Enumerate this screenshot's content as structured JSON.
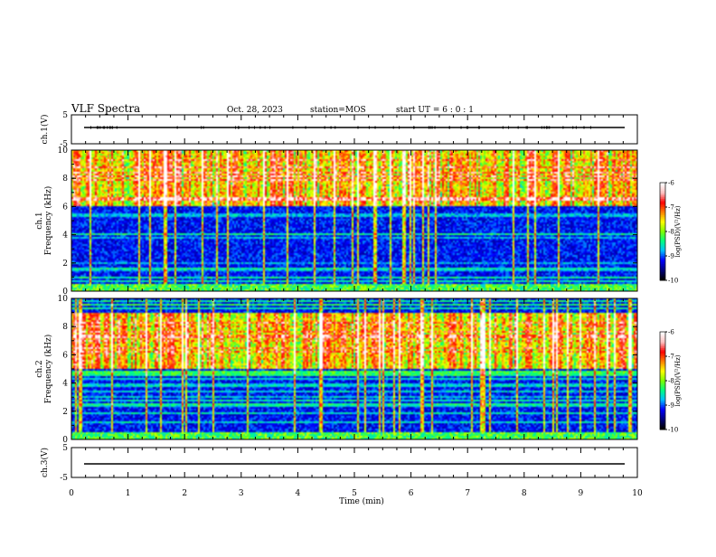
{
  "header": {
    "title": "VLF Spectra",
    "date": "Oct. 28, 2023",
    "station": "station=MOS",
    "start_ut": "start UT =  6 : 0 : 1"
  },
  "chart_data": [
    {
      "type": "line",
      "ylabel": "ch.1(V)",
      "ylim": [
        -5,
        5
      ],
      "yticks": [
        "5",
        "-5"
      ],
      "x": [
        0,
        10
      ],
      "y": [
        0,
        0
      ],
      "line_color": "#000000"
    },
    {
      "type": "heatmap",
      "ylabel": "ch.1\nFrequency (kHz)",
      "ylabel_top": "ch.1",
      "ylabel_bottom": "Frequency (kHz)",
      "ylim": [
        0,
        10
      ],
      "yticks": [
        "10",
        "8",
        "6",
        "4",
        "2",
        "0"
      ],
      "colorbar": {
        "label": "log(PSD)(V²/Hz)",
        "range": [
          -10,
          -6
        ],
        "ticks": [
          "-6",
          "-7",
          "-8",
          "-9",
          "-10"
        ]
      },
      "dominant_band_khz": [
        6,
        10
      ],
      "background_level": -9.5
    },
    {
      "type": "heatmap",
      "ylabel": "ch.2\nFrequency (kHz)",
      "ylabel_top": "ch.2",
      "ylabel_bottom": "Frequency (kHz)",
      "ylim": [
        0,
        10
      ],
      "yticks": [
        "10",
        "8",
        "6",
        "4",
        "2",
        "0"
      ],
      "colorbar": {
        "label": "log(PSD)(V²/Hz)",
        "range": [
          -10,
          -6
        ],
        "ticks": [
          "-6",
          "-7",
          "-8",
          "-9",
          "-10"
        ]
      },
      "dominant_band_khz": [
        5,
        9
      ],
      "background_level": -9.5
    },
    {
      "type": "line",
      "ylabel": "ch.3(V)",
      "ylim": [
        -5,
        5
      ],
      "yticks": [
        "5",
        "-5"
      ],
      "x": [
        0,
        10
      ],
      "y": [
        0,
        0
      ],
      "line_color": "#000000"
    }
  ],
  "xaxis": {
    "label": "Time (min)",
    "range": [
      0,
      10
    ],
    "ticks": [
      "0",
      "1",
      "2",
      "3",
      "4",
      "5",
      "6",
      "7",
      "8",
      "9",
      "10"
    ]
  },
  "colormap": [
    "#000000",
    "#000080",
    "#0000ff",
    "#00c0ff",
    "#00ff80",
    "#80ff00",
    "#ffff00",
    "#ff8000",
    "#ff0000",
    "#ffc0c0",
    "#ffffff"
  ]
}
